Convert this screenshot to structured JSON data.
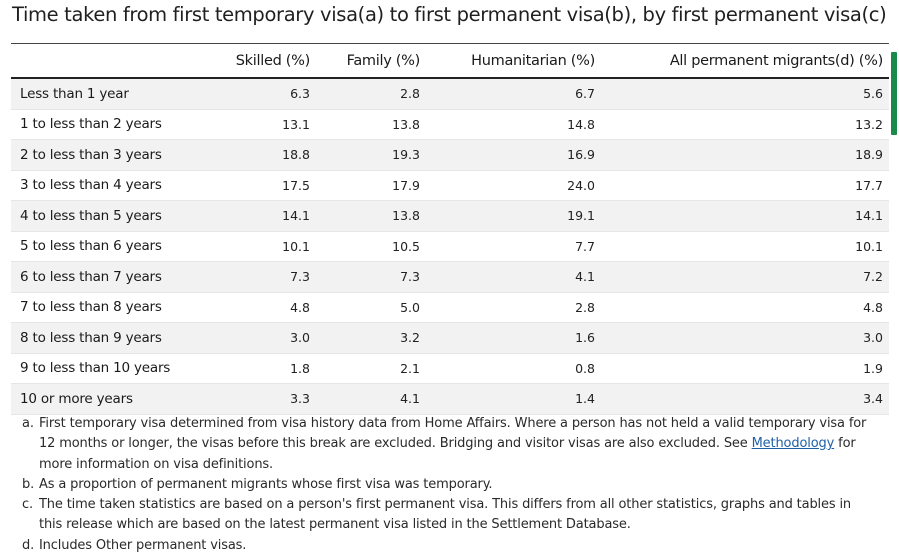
{
  "title": "Time taken from first temporary visa(a) to first permanent visa(b), by first permanent visa(c)",
  "table": {
    "headers": [
      "",
      "Skilled (%)",
      "Family (%)",
      "Humanitarian (%)",
      "All permanent migrants(d) (%)"
    ],
    "rows": [
      {
        "label": "Less than 1 year",
        "skilled": "6.3",
        "family": "2.8",
        "humanitarian": "6.7",
        "all": "5.6"
      },
      {
        "label": "1 to less than 2 years",
        "skilled": "13.1",
        "family": "13.8",
        "humanitarian": "14.8",
        "all": "13.2"
      },
      {
        "label": "2 to less than 3 years",
        "skilled": "18.8",
        "family": "19.3",
        "humanitarian": "16.9",
        "all": "18.9"
      },
      {
        "label": "3 to less than 4 years",
        "skilled": "17.5",
        "family": "17.9",
        "humanitarian": "24.0",
        "all": "17.7"
      },
      {
        "label": "4 to less than 5 years",
        "skilled": "14.1",
        "family": "13.8",
        "humanitarian": "19.1",
        "all": "14.1"
      },
      {
        "label": "5 to less than 6 years",
        "skilled": "10.1",
        "family": "10.5",
        "humanitarian": "7.7",
        "all": "10.1"
      },
      {
        "label": "6 to less than 7 years",
        "skilled": "7.3",
        "family": "7.3",
        "humanitarian": "4.1",
        "all": "7.2"
      },
      {
        "label": "7 to less than 8 years",
        "skilled": "4.8",
        "family": "5.0",
        "humanitarian": "2.8",
        "all": "4.8"
      },
      {
        "label": "8 to less than 9 years",
        "skilled": "3.0",
        "family": "3.2",
        "humanitarian": "1.6",
        "all": "3.0"
      },
      {
        "label": "9 to less than 10 years",
        "skilled": "1.8",
        "family": "2.1",
        "humanitarian": "0.8",
        "all": "1.9"
      },
      {
        "label": "10 or more years",
        "skilled": "3.3",
        "family": "4.1",
        "humanitarian": "1.4",
        "all": "3.4"
      }
    ]
  },
  "footnotes": {
    "a": {
      "key": "a.",
      "text_before": "First temporary visa determined from visa history data from Home Affairs. Where a person has not held a valid temporary visa for 12 months or longer, the visas before this break are excluded. Bridging and visitor visas are also excluded. See ",
      "link": "Methodology",
      "text_after": " for more information on visa definitions."
    },
    "b": {
      "key": "b.",
      "text": "As a proportion of permanent migrants whose first visa was temporary."
    },
    "c": {
      "key": "c.",
      "text": "The time taken statistics are based on a person's first permanent visa. This differs from all other statistics, graphs and tables in this release which are based on the latest permanent visa listed in the Settlement Database."
    },
    "d": {
      "key": "d.",
      "text": "Includes Other permanent visas."
    }
  },
  "colors": {
    "accent": "#1a8a4a",
    "link": "#1f5fa8",
    "row_shade": "#f2f2f2"
  }
}
